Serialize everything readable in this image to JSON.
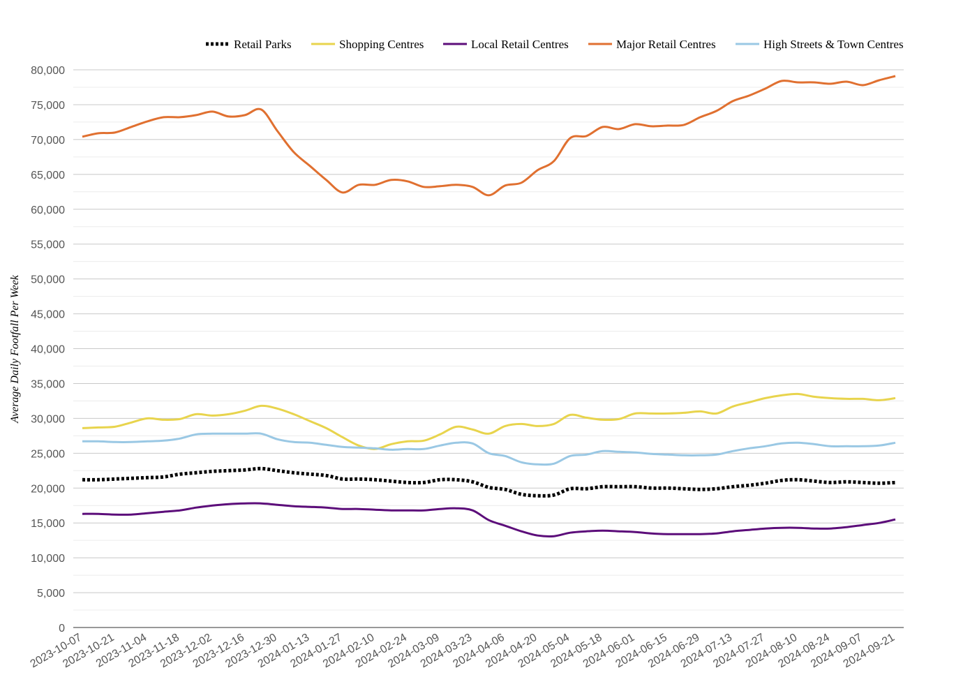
{
  "chart_data": {
    "type": "line",
    "title": "",
    "xlabel": "",
    "ylabel": "Average Daily Footfall Per Week",
    "ylim": [
      0,
      80000
    ],
    "yticks": [
      0,
      5000,
      10000,
      15000,
      20000,
      25000,
      30000,
      35000,
      40000,
      45000,
      50000,
      55000,
      60000,
      65000,
      70000,
      75000,
      80000
    ],
    "ytick_labels": [
      "0",
      "5,000",
      "10,000",
      "15,000",
      "20,000",
      "25,000",
      "30,000",
      "35,000",
      "40,000",
      "45,000",
      "50,000",
      "55,000",
      "60,000",
      "65,000",
      "70,000",
      "75,000",
      "80,000"
    ],
    "grid": true,
    "minor_grid": true,
    "legend_position": "top-right",
    "x": [
      "2023-10-07",
      "2023-10-14",
      "2023-10-21",
      "2023-10-28",
      "2023-11-04",
      "2023-11-11",
      "2023-11-18",
      "2023-11-25",
      "2023-12-02",
      "2023-12-09",
      "2023-12-16",
      "2023-12-23",
      "2023-12-30",
      "2024-01-06",
      "2024-01-13",
      "2024-01-20",
      "2024-01-27",
      "2024-02-03",
      "2024-02-10",
      "2024-02-17",
      "2024-02-24",
      "2024-03-02",
      "2024-03-09",
      "2024-03-16",
      "2024-03-23",
      "2024-03-30",
      "2024-04-06",
      "2024-04-13",
      "2024-04-20",
      "2024-04-27",
      "2024-05-04",
      "2024-05-11",
      "2024-05-18",
      "2024-05-25",
      "2024-06-01",
      "2024-06-08",
      "2024-06-15",
      "2024-06-22",
      "2024-06-29",
      "2024-07-06",
      "2024-07-13",
      "2024-07-20",
      "2024-07-27",
      "2024-08-03",
      "2024-08-10",
      "2024-08-17",
      "2024-08-24",
      "2024-08-31",
      "2024-09-07",
      "2024-09-14",
      "2024-09-21"
    ],
    "xtick_labels": [
      "2023-10-07",
      "2023-10-21",
      "2023-11-04",
      "2023-11-18",
      "2023-12-02",
      "2023-12-16",
      "2023-12-30",
      "2024-01-13",
      "2024-01-27",
      "2024-02-10",
      "2024-02-24",
      "2024-03-09",
      "2024-03-23",
      "2024-04-06",
      "2024-04-20",
      "2024-05-04",
      "2024-05-18",
      "2024-06-01",
      "2024-06-15",
      "2024-06-29",
      "2024-07-13",
      "2024-07-27",
      "2024-08-10",
      "2024-08-24",
      "2024-09-07",
      "2024-09-21"
    ],
    "series": [
      {
        "name": "Retail Parks",
        "color": "#000000",
        "style": "dotted",
        "values": [
          21200,
          21200,
          21300,
          21400,
          21500,
          21600,
          22000,
          22200,
          22400,
          22500,
          22600,
          22800,
          22500,
          22200,
          22000,
          21800,
          21300,
          21300,
          21200,
          21000,
          20800,
          20800,
          21200,
          21200,
          20900,
          20100,
          19800,
          19100,
          18900,
          19000,
          19900,
          19900,
          20200,
          20200,
          20200,
          20000,
          20000,
          19900,
          19800,
          19900,
          20200,
          20400,
          20700,
          21100,
          21200,
          21000,
          20800,
          20900,
          20800,
          20700,
          20800
        ]
      },
      {
        "name": "Shopping Centres",
        "color": "#e8d44d",
        "style": "solid",
        "values": [
          28600,
          28700,
          28800,
          29400,
          30000,
          29800,
          29900,
          30600,
          30400,
          30600,
          31100,
          31800,
          31400,
          30600,
          29600,
          28600,
          27300,
          26100,
          25600,
          26300,
          26700,
          26800,
          27700,
          28800,
          28400,
          27800,
          28900,
          29200,
          28900,
          29200,
          30500,
          30100,
          29800,
          29900,
          30700,
          30700,
          30700,
          30800,
          31000,
          30700,
          31700,
          32300,
          32900,
          33300,
          33500,
          33100,
          32900,
          32800,
          32800,
          32600,
          32900
        ]
      },
      {
        "name": "Local Retail Centres",
        "color": "#5c0d7a",
        "style": "solid",
        "values": [
          16300,
          16300,
          16200,
          16200,
          16400,
          16600,
          16800,
          17200,
          17500,
          17700,
          17800,
          17800,
          17600,
          17400,
          17300,
          17200,
          17000,
          17000,
          16900,
          16800,
          16800,
          16800,
          17000,
          17100,
          16800,
          15400,
          14600,
          13800,
          13200,
          13100,
          13600,
          13800,
          13900,
          13800,
          13700,
          13500,
          13400,
          13400,
          13400,
          13500,
          13800,
          14000,
          14200,
          14300,
          14300,
          14200,
          14200,
          14400,
          14700,
          15000,
          15500
        ]
      },
      {
        "name": "Major Retail Centres",
        "color": "#e07030",
        "style": "solid",
        "values": [
          70400,
          70900,
          71000,
          71800,
          72600,
          73200,
          73200,
          73500,
          74000,
          73300,
          73500,
          74300,
          71200,
          68200,
          66200,
          64200,
          62400,
          63500,
          63500,
          64200,
          64000,
          63200,
          63300,
          63500,
          63200,
          62000,
          63400,
          63800,
          65600,
          66900,
          70200,
          70500,
          71800,
          71500,
          72200,
          71900,
          72000,
          72100,
          73200,
          74100,
          75500,
          76300,
          77300,
          78400,
          78200,
          78200,
          78000,
          78300,
          77800,
          78500,
          79100
        ]
      },
      {
        "name": "High Streets & Town Centres",
        "color": "#9ac8e4",
        "style": "solid",
        "values": [
          26700,
          26700,
          26600,
          26600,
          26700,
          26800,
          27100,
          27700,
          27800,
          27800,
          27800,
          27800,
          27000,
          26600,
          26500,
          26200,
          25900,
          25800,
          25700,
          25500,
          25600,
          25600,
          26100,
          26500,
          26400,
          25000,
          24600,
          23700,
          23400,
          23500,
          24600,
          24800,
          25300,
          25200,
          25100,
          24900,
          24800,
          24700,
          24700,
          24800,
          25300,
          25700,
          26000,
          26400,
          26500,
          26300,
          26000,
          26000,
          26000,
          26100,
          26500
        ]
      }
    ]
  }
}
